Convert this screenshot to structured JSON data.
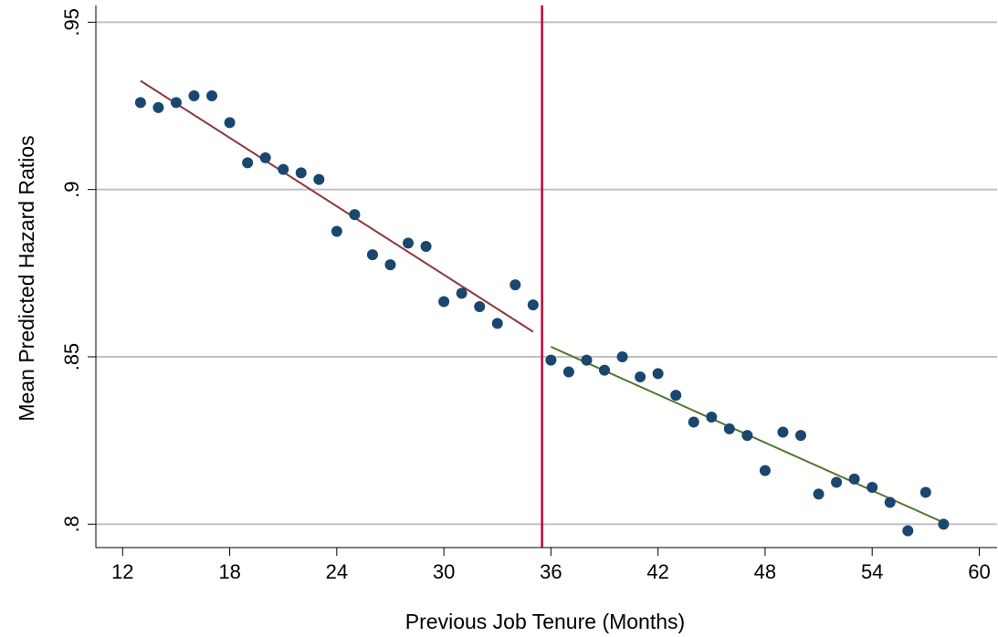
{
  "chart_data": {
    "type": "scatter",
    "title": "",
    "xlabel": "Previous Job Tenure (Months)",
    "ylabel": "Mean Predicted Hazard Ratios",
    "xlim": [
      10.5,
      61
    ],
    "ylim": [
      0.793,
      0.955
    ],
    "x_ticks": [
      12,
      18,
      24,
      30,
      36,
      42,
      48,
      54,
      60
    ],
    "x_tick_labels": [
      "12",
      "18",
      "24",
      "30",
      "36",
      "42",
      "48",
      "54",
      "60"
    ],
    "y_ticks": [
      0.8,
      0.85,
      0.9,
      0.95
    ],
    "y_tick_labels": [
      ".8",
      ".85",
      ".9",
      ".95"
    ],
    "grid": "horizontal",
    "cutoff_x": 35.5,
    "colors": {
      "points": "#1a476f",
      "fit_left": "#90353b",
      "fit_right": "#55752f",
      "cutoff": "#c10534",
      "grid": "#c0c0c0"
    },
    "points": [
      [
        13,
        0.926
      ],
      [
        14,
        0.9245
      ],
      [
        15,
        0.926
      ],
      [
        16,
        0.928
      ],
      [
        17,
        0.928
      ],
      [
        18,
        0.92
      ],
      [
        19,
        0.908
      ],
      [
        20,
        0.9095
      ],
      [
        21,
        0.906
      ],
      [
        22,
        0.905
      ],
      [
        23,
        0.903
      ],
      [
        24,
        0.8875
      ],
      [
        25,
        0.8925
      ],
      [
        26,
        0.8805
      ],
      [
        27,
        0.8775
      ],
      [
        28,
        0.884
      ],
      [
        29,
        0.883
      ],
      [
        30,
        0.8665
      ],
      [
        31,
        0.869
      ],
      [
        32,
        0.865
      ],
      [
        33,
        0.86
      ],
      [
        34,
        0.8715
      ],
      [
        35,
        0.8655
      ],
      [
        36,
        0.849
      ],
      [
        37,
        0.8455
      ],
      [
        38,
        0.849
      ],
      [
        39,
        0.846
      ],
      [
        40,
        0.85
      ],
      [
        41,
        0.844
      ],
      [
        42,
        0.845
      ],
      [
        43,
        0.8385
      ],
      [
        44,
        0.8305
      ],
      [
        45,
        0.832
      ],
      [
        46,
        0.8285
      ],
      [
        47,
        0.8265
      ],
      [
        48,
        0.816
      ],
      [
        49,
        0.8275
      ],
      [
        50,
        0.8265
      ],
      [
        51,
        0.809
      ],
      [
        52,
        0.8125
      ],
      [
        53,
        0.8135
      ],
      [
        54,
        0.811
      ],
      [
        55,
        0.8065
      ],
      [
        56,
        0.798
      ],
      [
        57,
        0.8095
      ],
      [
        58,
        0.8
      ]
    ],
    "fit_lines": [
      {
        "x": [
          13,
          35
        ],
        "y": [
          0.9325,
          0.8575
        ]
      },
      {
        "x": [
          36,
          58
        ],
        "y": [
          0.853,
          0.8005
        ]
      }
    ]
  }
}
